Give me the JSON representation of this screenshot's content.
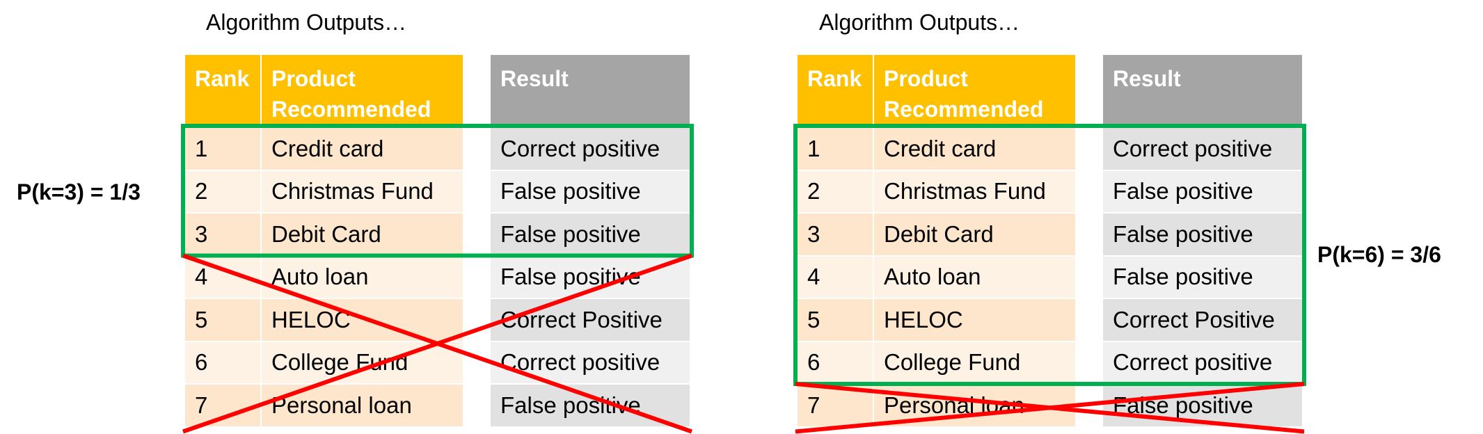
{
  "colors": {
    "header_orange": "#FFC000",
    "header_gray": "#A5A5A5",
    "row_orange_dark": "#FDE6CB",
    "row_orange_light": "#FEF2E5",
    "row_gray_dark": "#E1E1E1",
    "row_gray_light": "#F0F0F0",
    "box_green": "#00B050",
    "cross_red": "#FF0000"
  },
  "panels": [
    {
      "title": "Algorithm Outputs…",
      "headers": {
        "rank": "Rank",
        "product": "Product Recommended",
        "result": "Result"
      },
      "rows": [
        {
          "rank": "1",
          "product": "Credit card",
          "result": "Correct positive"
        },
        {
          "rank": "2",
          "product": "Christmas Fund",
          "result": "False positive"
        },
        {
          "rank": "3",
          "product": "Debit Card",
          "result": "False positive"
        },
        {
          "rank": "4",
          "product": "Auto loan",
          "result": "False positive"
        },
        {
          "rank": "5",
          "product": "HELOC",
          "result": "Correct Positive"
        },
        {
          "rank": "6",
          "product": "College Fund",
          "result": "Correct positive"
        },
        {
          "rank": "7",
          "product": "Personal loan",
          "result": "False positive"
        }
      ],
      "k": 3,
      "precision_label": "P(k=3) = 1/3"
    },
    {
      "title": "Algorithm Outputs…",
      "headers": {
        "rank": "Rank",
        "product": "Product Recommended",
        "result": "Result"
      },
      "rows": [
        {
          "rank": "1",
          "product": "Credit card",
          "result": "Correct positive"
        },
        {
          "rank": "2",
          "product": "Christmas Fund",
          "result": "False positive"
        },
        {
          "rank": "3",
          "product": "Debit Card",
          "result": "False positive"
        },
        {
          "rank": "4",
          "product": "Auto loan",
          "result": "False positive"
        },
        {
          "rank": "5",
          "product": "HELOC",
          "result": "Correct Positive"
        },
        {
          "rank": "6",
          "product": "College Fund",
          "result": "Correct positive"
        },
        {
          "rank": "7",
          "product": "Personal loan",
          "result": "False positive"
        }
      ],
      "k": 6,
      "precision_label": "P(k=6) = 3/6"
    }
  ]
}
